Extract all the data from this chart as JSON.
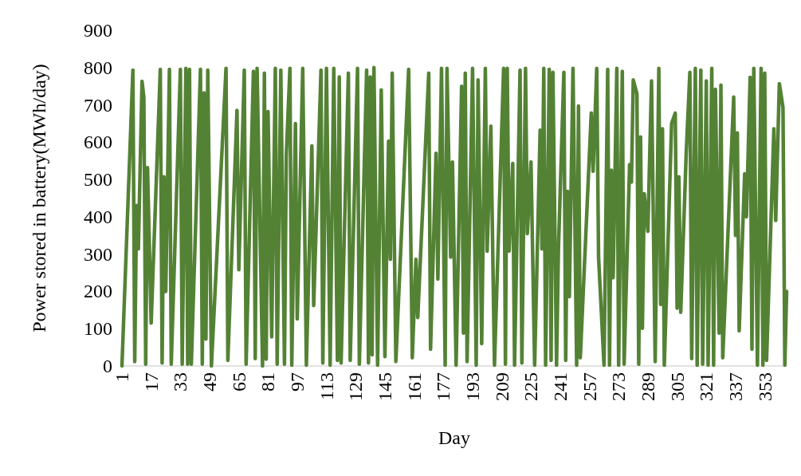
{
  "chart_data": {
    "type": "line",
    "xlabel": "Day",
    "ylabel": "Power stored in battery(MWh/day)",
    "xlim": [
      1,
      365
    ],
    "xticks": [
      1,
      17,
      33,
      49,
      65,
      81,
      97,
      113,
      129,
      145,
      161,
      177,
      193,
      209,
      225,
      241,
      257,
      273,
      289,
      305,
      321,
      337,
      353
    ],
    "ylim": [
      0,
      900
    ],
    "yticks": [
      0,
      100,
      200,
      300,
      400,
      500,
      600,
      700,
      800,
      900
    ],
    "grid": false,
    "marker": "none",
    "line_style": "solid",
    "series": [
      {
        "color": "#548235",
        "x": [
          1,
          7,
          8,
          9,
          10,
          12,
          13,
          14,
          15,
          17,
          22,
          23,
          24,
          25,
          27,
          28,
          33,
          34,
          36,
          37,
          38,
          39,
          44,
          45,
          46,
          47,
          48,
          50,
          58,
          59,
          64,
          65,
          68,
          69,
          73,
          74,
          75,
          78,
          79,
          80,
          81,
          83,
          85,
          86,
          88,
          90,
          91,
          93,
          94,
          96,
          97,
          100,
          102,
          105,
          106,
          110,
          111,
          113,
          115,
          117,
          119,
          120,
          121,
          125,
          126,
          130,
          131,
          135,
          136,
          137,
          138,
          139,
          141,
          143,
          145,
          147,
          148,
          149,
          151,
          158,
          160,
          162,
          163,
          169,
          170,
          173,
          174,
          176,
          178,
          179,
          181,
          182,
          184,
          187,
          188,
          189,
          190,
          193,
          195,
          196,
          198,
          200,
          201,
          203,
          205,
          210,
          211,
          212,
          213,
          215,
          216,
          219,
          220,
          222,
          223,
          225,
          227,
          230,
          231,
          232,
          233,
          235,
          236,
          237,
          239,
          240,
          243,
          244,
          245,
          246,
          248,
          250,
          251,
          252,
          258,
          259,
          261,
          262,
          265,
          267,
          268,
          269,
          270,
          272,
          273,
          275,
          276,
          279,
          280,
          281,
          283,
          284,
          285,
          286,
          287,
          289,
          291,
          293,
          295,
          296,
          297,
          298,
          302,
          304,
          305,
          306,
          307,
          310,
          312,
          313,
          315,
          316,
          318,
          319,
          321,
          322,
          324,
          325,
          326,
          328,
          329,
          330,
          336,
          337,
          338,
          339,
          342,
          343,
          345,
          346,
          347,
          349,
          351,
          352,
          353,
          354,
          358,
          359,
          361,
          363,
          364,
          365
        ],
        "values": [
          0,
          793,
          12,
          430,
          314,
          763,
          720,
          5,
          532,
          115,
          795,
          8,
          507,
          200,
          795,
          5,
          795,
          5,
          798,
          5,
          795,
          5,
          795,
          5,
          732,
          72,
          793,
          0,
          798,
          15,
          685,
          258,
          793,
          5,
          790,
          20,
          798,
          0,
          785,
          18,
          682,
          78,
          798,
          5,
          793,
          5,
          565,
          798,
          2,
          650,
          126,
          798,
          2,
          590,
          162,
          793,
          8,
          798,
          2,
          798,
          15,
          775,
          8,
          785,
          15,
          798,
          5,
          793,
          8,
          775,
          30,
          800,
          2,
          740,
          25,
          603,
          286,
          785,
          12,
          795,
          22,
          286,
          130,
          785,
          45,
          570,
          233,
          798,
          2,
          798,
          292,
          547,
          2,
          750,
          88,
          785,
          12,
          798,
          2,
          767,
          60,
          798,
          308,
          643,
          2,
          798,
          5,
          798,
          308,
          543,
          2,
          793,
          8,
          798,
          355,
          547,
          2,
          632,
          314,
          798,
          2,
          795,
          15,
          787,
          2,
          308,
          787,
          15,
          468,
          186,
          798,
          2,
          697,
          22,
          678,
          522,
          798,
          292,
          2,
          795,
          2,
          525,
          237,
          798,
          2,
          790,
          5,
          540,
          493,
          767,
          730,
          5,
          614,
          101,
          462,
          361,
          764,
          12,
          798,
          165,
          636,
          2,
          650,
          678,
          155,
          507,
          144,
          571,
          787,
          20,
          798,
          2,
          793,
          5,
          764,
          2,
          798,
          2,
          742,
          88,
          753,
          22,
          721,
          350,
          625,
          94,
          515,
          400,
          774,
          45,
          798,
          2,
          798,
          2,
          785,
          15,
          636,
          390,
          757,
          693,
          2,
          200
        ]
      }
    ]
  }
}
